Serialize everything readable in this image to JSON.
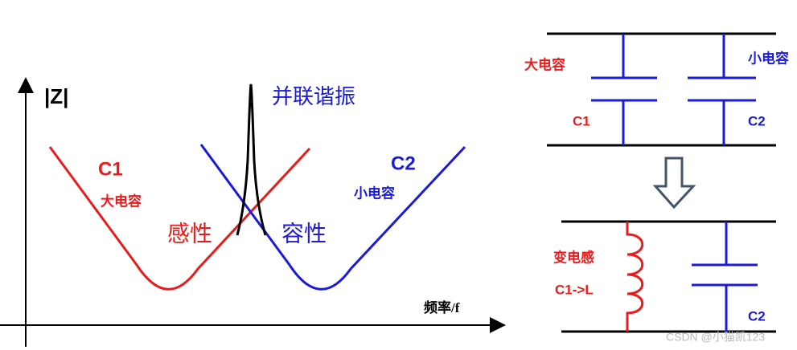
{
  "left_plot": {
    "y_label": "|Z|",
    "x_label": "频率/f",
    "resonance_label": "并联谐振",
    "curve1": {
      "name": "C1",
      "desc": "大电容",
      "region": "感性"
    },
    "curve2": {
      "name": "C2",
      "desc": "小电容",
      "region": "容性"
    }
  },
  "right_top": {
    "cap1_desc": "大电容",
    "cap1_name": "C1",
    "cap2_desc": "小电容",
    "cap2_name": "C2"
  },
  "right_bottom": {
    "inductor_desc": "变电感",
    "inductor_name": "C1->L",
    "cap_name": "C2"
  },
  "watermark": "CSDN @小猫凯123"
}
